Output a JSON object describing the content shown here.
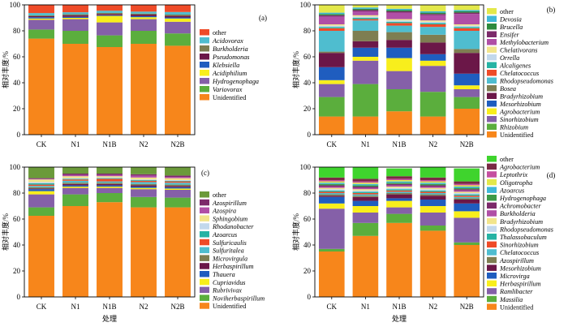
{
  "chart_data": [
    {
      "id": "a",
      "type": "bar",
      "stacked": true,
      "panel_label": "(a)",
      "categories": [
        "CK",
        "N1",
        "N1B",
        "N2",
        "N2B"
      ],
      "ylabel": "相对丰度/%",
      "xlabel": "",
      "ylim": [
        0,
        100
      ],
      "yticks": [
        0,
        20,
        40,
        60,
        80,
        100
      ],
      "series": [
        {
          "name": "Unidentified",
          "color": "#F7861B",
          "values": [
            74,
            70,
            67.5,
            70,
            68.5
          ]
        },
        {
          "name": "Variovorax",
          "color": "#5BAE3D",
          "values": [
            7,
            10,
            9,
            10,
            9.5
          ]
        },
        {
          "name": "Hydrogenophaga",
          "color": "#8560A8",
          "values": [
            7.5,
            9,
            10,
            9,
            9
          ]
        },
        {
          "name": "Acidiphilium",
          "color": "#F8EE1C",
          "values": [
            1,
            1,
            5,
            1.5,
            2.5
          ]
        },
        {
          "name": "Klebsiella",
          "color": "#1F5DBF",
          "values": [
            1,
            0.8,
            0.5,
            0.8,
            0.8
          ]
        },
        {
          "name": "Pseudomonas",
          "color": "#6B1748",
          "values": [
            0.8,
            1.2,
            1,
            1.2,
            1.2
          ]
        },
        {
          "name": "Burkholderia",
          "color": "#7E7E52",
          "values": [
            0.6,
            0.8,
            0.8,
            0.8,
            1
          ]
        },
        {
          "name": "Acidovorax",
          "color": "#4FBDCF",
          "values": [
            1.8,
            1.5,
            1.7,
            1.5,
            2
          ]
        },
        {
          "name": "other",
          "color": "#EF4B28",
          "values": [
            6.3,
            5.7,
            4.5,
            5.2,
            5.5
          ]
        }
      ]
    },
    {
      "id": "b",
      "type": "bar",
      "stacked": true,
      "panel_label": "(b)",
      "categories": [
        "CK",
        "N1",
        "N1B",
        "N2",
        "N2B"
      ],
      "ylabel": "相对丰度/%",
      "xlabel": "",
      "ylim": [
        0,
        100
      ],
      "yticks": [
        0,
        20,
        40,
        60,
        80,
        100
      ],
      "series": [
        {
          "name": "Unidentified",
          "color": "#F7861B",
          "values": [
            14,
            14,
            18,
            14,
            20
          ]
        },
        {
          "name": "Rhizobium",
          "color": "#5BAE3D",
          "values": [
            15,
            25,
            17,
            19,
            9
          ]
        },
        {
          "name": "Sinorhizobium",
          "color": "#8560A8",
          "values": [
            10,
            18,
            14,
            20,
            6
          ]
        },
        {
          "name": "Agrobacterium",
          "color": "#F8EE1C",
          "values": [
            3,
            3,
            10,
            4,
            3
          ]
        },
        {
          "name": "Mesorhizobium",
          "color": "#1F5DBF",
          "values": [
            10,
            7,
            8,
            5,
            9
          ]
        },
        {
          "name": "Bradyrhizobium",
          "color": "#6B1748",
          "values": [
            11,
            5,
            6,
            9,
            16
          ]
        },
        {
          "name": "Bosea",
          "color": "#7E7E52",
          "values": [
            1,
            8,
            6,
            6,
            3
          ]
        },
        {
          "name": "Rhodopseudomonas",
          "color": "#4FBDCF",
          "values": [
            16,
            8,
            5,
            6,
            14
          ]
        },
        {
          "name": "Chelatococcus",
          "color": "#EF4B28",
          "values": [
            2,
            1,
            2,
            2,
            2
          ]
        },
        {
          "name": "Alcaligenes",
          "color": "#26B3A4",
          "values": [
            1,
            1,
            1,
            1,
            1
          ]
        },
        {
          "name": "Orrella",
          "color": "#C2D8EC",
          "values": [
            1,
            1,
            1,
            1,
            1
          ]
        },
        {
          "name": "Chelativorans",
          "color": "#F2E58C",
          "values": [
            1,
            1,
            1,
            1,
            1
          ]
        },
        {
          "name": "Methylobacterium",
          "color": "#B04FA6",
          "values": [
            6,
            3,
            5,
            4,
            8
          ]
        },
        {
          "name": "Ensifer",
          "color": "#7C2A6A",
          "values": [
            1,
            1,
            1,
            1,
            1
          ]
        },
        {
          "name": "Brucella",
          "color": "#2D8A3E",
          "values": [
            1,
            1,
            1,
            1,
            1
          ]
        },
        {
          "name": "Devosia",
          "color": "#3FB8D8",
          "values": [
            1,
            1,
            1,
            1,
            1
          ]
        },
        {
          "name": "other",
          "color": "#E3E84A",
          "values": [
            6,
            2,
            3,
            5,
            4
          ]
        }
      ]
    },
    {
      "id": "c",
      "type": "bar",
      "stacked": true,
      "panel_label": "(c)",
      "categories": [
        "CK",
        "N1",
        "N1B",
        "N2",
        "N2B"
      ],
      "ylabel": "相对丰度/%",
      "xlabel": "",
      "ylim": [
        0,
        100
      ],
      "yticks": [
        0,
        20,
        40,
        60,
        80,
        100
      ],
      "series": [
        {
          "name": "Unidentified",
          "color": "#F7861B",
          "values": [
            62.5,
            70,
            73,
            69,
            69
          ]
        },
        {
          "name": "Noviherbaspirillum",
          "color": "#5BAE3D",
          "values": [
            6.5,
            9,
            7,
            8,
            7.5
          ]
        },
        {
          "name": "Rubrivivax",
          "color": "#8560A8",
          "values": [
            10,
            5,
            4,
            6,
            6
          ]
        },
        {
          "name": "Cupriavidus",
          "color": "#F8EE1C",
          "values": [
            2.5,
            1,
            1,
            1,
            1
          ]
        },
        {
          "name": "Thauera",
          "color": "#1F5DBF",
          "values": [
            1.5,
            1,
            1,
            1,
            1
          ]
        },
        {
          "name": "Herbaspirillum",
          "color": "#6B1748",
          "values": [
            0.5,
            1,
            1,
            1,
            1
          ]
        },
        {
          "name": "Microvirgula",
          "color": "#7E7E52",
          "values": [
            1,
            1,
            1,
            1,
            1
          ]
        },
        {
          "name": "Sulfuritalea",
          "color": "#4FBDCF",
          "values": [
            1,
            1.5,
            1,
            1.5,
            1.5
          ]
        },
        {
          "name": "Sulfuricaulis",
          "color": "#EF4B28",
          "values": [
            1,
            1,
            2,
            1,
            1
          ]
        },
        {
          "name": "Azoarcus",
          "color": "#26B3A4",
          "values": [
            1,
            0.5,
            0.5,
            0.5,
            0.5
          ]
        },
        {
          "name": "Rhodanobacter",
          "color": "#C2D8EC",
          "values": [
            1,
            0.5,
            0.5,
            0.5,
            0.5
          ]
        },
        {
          "name": "Sphingobium",
          "color": "#F2E58C",
          "values": [
            2,
            1.5,
            1,
            1.5,
            1.5
          ]
        },
        {
          "name": "Azospira",
          "color": "#B04FA6",
          "values": [
            0.5,
            1,
            1,
            1.5,
            1
          ]
        },
        {
          "name": "Azospirillum",
          "color": "#7C2A6A",
          "values": [
            0.5,
            1,
            1,
            1,
            1
          ]
        },
        {
          "name": "other",
          "color": "#6B9A3A",
          "values": [
            9.5,
            5,
            5,
            6.5,
            7.5
          ]
        }
      ]
    },
    {
      "id": "d",
      "type": "bar",
      "stacked": true,
      "panel_label": "(d)",
      "categories": [
        "CK",
        "N1",
        "N1B",
        "N2",
        "N2B"
      ],
      "ylabel": "相对丰度/%",
      "xlabel": "处理",
      "ylim": [
        0,
        100
      ],
      "yticks": [
        0,
        20,
        40,
        60,
        80,
        100
      ],
      "series": [
        {
          "name": "Unidentified",
          "color": "#F7861B",
          "values": [
            35,
            47,
            57,
            51,
            40
          ]
        },
        {
          "name": "Massilia",
          "color": "#5BAE3D",
          "values": [
            2,
            10,
            7,
            4,
            2
          ]
        },
        {
          "name": "Ramlibacter",
          "color": "#8560A8",
          "values": [
            31,
            8,
            5,
            10,
            19
          ]
        },
        {
          "name": "Herbaspirillum",
          "color": "#F8EE1C",
          "values": [
            4,
            5,
            5,
            5,
            5
          ]
        },
        {
          "name": "Microvirga",
          "color": "#1F5DBF",
          "values": [
            5,
            4,
            2,
            5,
            6
          ]
        },
        {
          "name": "Mesorhizobium",
          "color": "#6B1748",
          "values": [
            1,
            3,
            3,
            3,
            3
          ]
        },
        {
          "name": "Azospirillum",
          "color": "#7E7E52",
          "values": [
            1,
            1,
            1,
            1,
            1
          ]
        },
        {
          "name": "Chelatococcus",
          "color": "#4FBDCF",
          "values": [
            1,
            1,
            1,
            1,
            1
          ]
        },
        {
          "name": "Sinorhizobium",
          "color": "#EF4B28",
          "values": [
            1,
            1,
            1,
            1,
            1
          ]
        },
        {
          "name": "Thalassobaculum",
          "color": "#26B3A4",
          "values": [
            1,
            1,
            1,
            1,
            1
          ]
        },
        {
          "name": "Rhodopseudomonas",
          "color": "#C2D8EC",
          "values": [
            1,
            1,
            1,
            1,
            1
          ]
        },
        {
          "name": "Bradyrhizobium",
          "color": "#F2E58C",
          "values": [
            1,
            1,
            1,
            1,
            1
          ]
        },
        {
          "name": "Burkholderia",
          "color": "#B04FA6",
          "values": [
            1,
            1,
            1,
            1,
            1
          ]
        },
        {
          "name": "Achromobacter",
          "color": "#7C2A6A",
          "values": [
            1,
            1,
            1,
            1,
            1
          ]
        },
        {
          "name": "Hydrogenophaga",
          "color": "#3D9A47",
          "values": [
            1,
            1,
            1,
            1,
            1
          ]
        },
        {
          "name": "Azoarcus",
          "color": "#3FB8D8",
          "values": [
            1,
            1,
            1,
            1,
            1
          ]
        },
        {
          "name": "Oligotropha",
          "color": "#E3E84A",
          "values": [
            1,
            1,
            1,
            1,
            1
          ]
        },
        {
          "name": "Leptothrix",
          "color": "#C54FA0",
          "values": [
            1,
            1,
            1,
            1,
            1
          ]
        },
        {
          "name": "Agrobacterium",
          "color": "#7A2A45",
          "values": [
            2,
            2,
            2,
            2,
            2
          ]
        },
        {
          "name": "other",
          "color": "#3FD42D",
          "values": [
            8,
            10,
            6,
            8,
            10
          ]
        }
      ]
    }
  ]
}
